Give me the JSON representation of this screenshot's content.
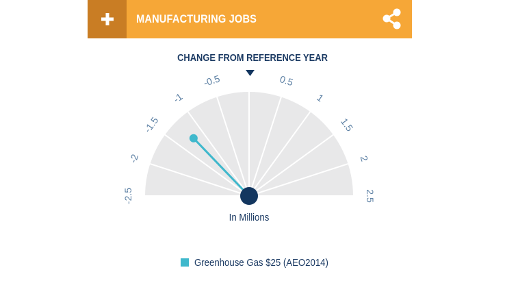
{
  "header": {
    "add_icon": "plus-icon",
    "title": "MANUFACTURING JOBS",
    "share_icon": "share-icon",
    "color": "#f6a737",
    "accent": "#c97d24"
  },
  "chart_data": {
    "type": "gauge",
    "title": "CHANGE FROM REFERENCE YEAR",
    "unit_label": "In Millions",
    "range": [
      -2.5,
      2.5
    ],
    "ticks": [
      {
        "value": -2.5,
        "label": "-2.5"
      },
      {
        "value": -2,
        "label": "-2"
      },
      {
        "value": -1.5,
        "label": "-1.5"
      },
      {
        "value": -1,
        "label": "-1"
      },
      {
        "value": -0.5,
        "label": "-0.5"
      },
      {
        "value": 0,
        "label": ""
      },
      {
        "value": 0.5,
        "label": "0.5"
      },
      {
        "value": 1,
        "label": "1"
      },
      {
        "value": 1.5,
        "label": "1.5"
      },
      {
        "value": 2,
        "label": "2"
      },
      {
        "value": 2.5,
        "label": "2.5"
      }
    ],
    "series": [
      {
        "name": "Greenhouse Gas $25 (AEO2014)",
        "value": -1.22,
        "color": "#3fb8cc"
      }
    ],
    "reference_marker_value": 0,
    "dial_color": "#e8e8e9",
    "hub_color": "#13365f",
    "label_color": "#1b3a63"
  }
}
